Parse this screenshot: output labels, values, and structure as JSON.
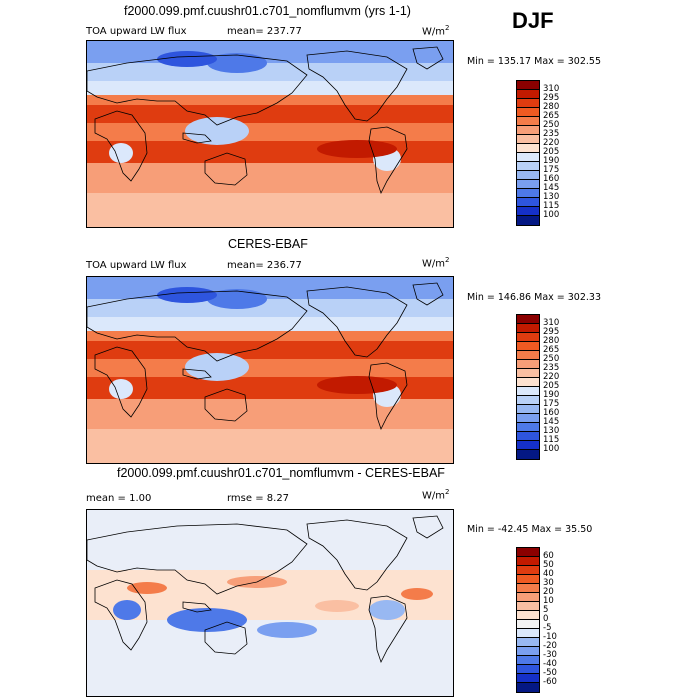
{
  "season": "DJF",
  "units": "W/m²",
  "panels": [
    {
      "title": "f2000.099.pmf.cuushr01.c701_nomflumvm (yrs 1-1)",
      "left_label": "TOA upward LW flux",
      "mid_label": "mean=  237.77",
      "minmax": "Min = 135.17  Max = 302.55",
      "levels": [
        "310",
        "295",
        "280",
        "265",
        "250",
        "235",
        "220",
        "205",
        "190",
        "175",
        "160",
        "145",
        "130",
        "115",
        "100"
      ],
      "colors": [
        "#8b0000",
        "#c21a00",
        "#df3c10",
        "#ef5a22",
        "#f47c4a",
        "#f79e78",
        "#fabfa2",
        "#fde2d0",
        "#dbe8fb",
        "#b9d1f7",
        "#98b8f2",
        "#7a9ff0",
        "#4e79e8",
        "#2e55de",
        "#1530c8",
        "#041884"
      ]
    },
    {
      "title": "CERES-EBAF",
      "left_label": "TOA upward LW flux",
      "mid_label": "mean=  236.77",
      "minmax": "Min = 146.86  Max = 302.33",
      "levels": [
        "310",
        "295",
        "280",
        "265",
        "250",
        "235",
        "220",
        "205",
        "190",
        "175",
        "160",
        "145",
        "130",
        "115",
        "100"
      ],
      "colors": [
        "#8b0000",
        "#c21a00",
        "#df3c10",
        "#ef5a22",
        "#f47c4a",
        "#f79e78",
        "#fabfa2",
        "#fde2d0",
        "#dbe8fb",
        "#b9d1f7",
        "#98b8f2",
        "#7a9ff0",
        "#4e79e8",
        "#2e55de",
        "#1530c8",
        "#041884"
      ]
    },
    {
      "title": "f2000.099.pmf.cuushr01.c701_nomflumvm - CERES-EBAF",
      "left_label": "mean =    1.00",
      "mid_label": "rmse =    8.27",
      "minmax": "Min = -42.45  Max =  35.50",
      "levels": [
        "60",
        "50",
        "40",
        "30",
        "20",
        "10",
        "5",
        "0",
        "-5",
        "-10",
        "-20",
        "-30",
        "-40",
        "-50",
        "-60"
      ],
      "colors": [
        "#8b0000",
        "#c21a00",
        "#df3c10",
        "#ef5a22",
        "#f47c4a",
        "#f79e78",
        "#fabfa2",
        "#fde2d0",
        "#f3f3f3",
        "#dbe8fb",
        "#98b8f2",
        "#7a9ff0",
        "#4e79e8",
        "#2e55de",
        "#1530c8",
        "#041884"
      ]
    }
  ],
  "chart_data": [
    {
      "type": "heatmap",
      "title": "f2000.099.pmf.cuushr01.c701_nomflumvm (yrs 1-1)",
      "variable": "TOA upward LW flux",
      "units": "W/m2",
      "mean": 237.77,
      "min": 135.17,
      "max": 302.55,
      "contour_levels": [
        100,
        115,
        130,
        145,
        160,
        175,
        190,
        205,
        220,
        235,
        250,
        265,
        280,
        295,
        310
      ]
    },
    {
      "type": "heatmap",
      "title": "CERES-EBAF",
      "variable": "TOA upward LW flux",
      "units": "W/m2",
      "mean": 236.77,
      "min": 146.86,
      "max": 302.33,
      "contour_levels": [
        100,
        115,
        130,
        145,
        160,
        175,
        190,
        205,
        220,
        235,
        250,
        265,
        280,
        295,
        310
      ]
    },
    {
      "type": "heatmap",
      "title": "f2000.099.pmf.cuushr01.c701_nomflumvm - CERES-EBAF",
      "units": "W/m2",
      "mean": 1.0,
      "rmse": 8.27,
      "min": -42.45,
      "max": 35.5,
      "contour_levels": [
        -60,
        -50,
        -40,
        -30,
        -20,
        -10,
        -5,
        0,
        5,
        10,
        20,
        30,
        40,
        50,
        60
      ]
    }
  ]
}
